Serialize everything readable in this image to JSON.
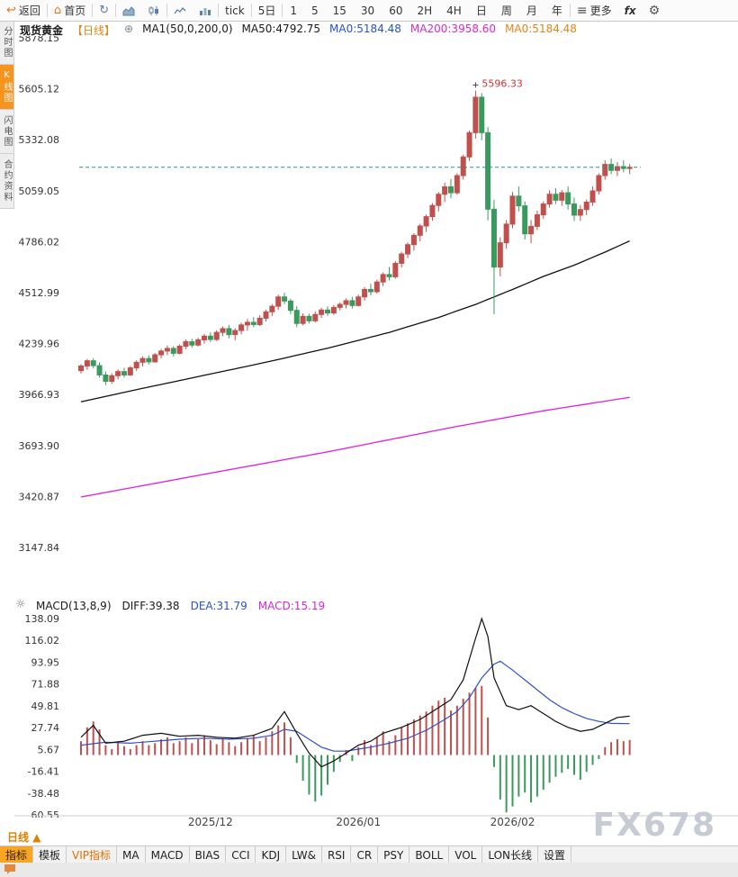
{
  "toolbar": {
    "back_label": "返回",
    "home_label": "首页",
    "tick_label": "tick",
    "five_day_label": "5日",
    "timeframes": [
      "1",
      "5",
      "15",
      "30",
      "60",
      "2H",
      "4H",
      "日",
      "周",
      "月",
      "年"
    ],
    "more_label": "更多",
    "fx_label": "fx"
  },
  "icons": {
    "back_glyph": "↩",
    "home_glyph": "⌂",
    "refresh_glyph": "↻",
    "more_glyph": "≡",
    "gear_glyph": "⚙",
    "expand_glyph": "⊕",
    "indicator_glyph": "☼",
    "period_arrow": "▲"
  },
  "side_tabs": [
    {
      "label": "分时图",
      "selected": false
    },
    {
      "label": "K线图",
      "selected": true
    },
    {
      "label": "闪电图",
      "selected": false
    },
    {
      "label": "合约资料",
      "selected": false
    }
  ],
  "chart_header": {
    "symbol": "现货黄金",
    "period_tag": "【日线】",
    "ma_setting": "MA1(50,0,200,0)",
    "ma50_label": "MA50:4792.75",
    "ma0_blue_label": "MA0:5184.48",
    "ma200_label": "MA200:3958.60",
    "ma0_orange_label": "MA0:5184.48"
  },
  "macd_header": {
    "title": "MACD(13,8,9)",
    "diff_label": "DIFF:39.38",
    "dea_label": "DEA:31.79",
    "macd_label": "MACD:15.19"
  },
  "bottom": {
    "period_selector": "日线",
    "watermark": "FX678",
    "tabs": [
      {
        "label": "指标",
        "state": "selected"
      },
      {
        "label": "模板"
      },
      {
        "label": "VIP指标",
        "accent": true
      },
      {
        "label": "MA"
      },
      {
        "label": "MACD"
      },
      {
        "label": "BIAS"
      },
      {
        "label": "CCI"
      },
      {
        "label": "KDJ"
      },
      {
        "label": "LW&"
      },
      {
        "label": "RSI"
      },
      {
        "label": "CR"
      },
      {
        "label": "PSY"
      },
      {
        "label": "BOLL"
      },
      {
        "label": "VOL"
      },
      {
        "label": "LON长线"
      },
      {
        "label": "设置"
      }
    ]
  },
  "chart_data": {
    "type": "candlestick",
    "title": "现货黄金 日线",
    "price_axis": {
      "ticks": [
        5878.15,
        5605.12,
        5332.08,
        5059.05,
        4786.02,
        4512.99,
        4239.96,
        3966.93,
        3693.9,
        3420.87,
        3147.84
      ]
    },
    "macd_axis": {
      "ticks": [
        138.09,
        116.02,
        93.95,
        71.88,
        49.81,
        27.74,
        5.67,
        -16.41,
        -38.48,
        -60.55
      ]
    },
    "x_axis": {
      "labels": [
        {
          "text": "2025/12",
          "index": 21
        },
        {
          "text": "2026/01",
          "index": 45
        },
        {
          "text": "2026/02",
          "index": 70
        }
      ]
    },
    "current_price": 5184.48,
    "peak_annotation": {
      "value": 5596.33,
      "index": 64
    },
    "candles": [
      [
        4095,
        4130,
        4080,
        4120
      ],
      [
        4120,
        4158,
        4100,
        4148
      ],
      [
        4148,
        4162,
        4108,
        4122
      ],
      [
        4122,
        4140,
        4058,
        4072
      ],
      [
        4072,
        4090,
        4018,
        4038
      ],
      [
        4038,
        4080,
        4024,
        4068
      ],
      [
        4068,
        4102,
        4048,
        4090
      ],
      [
        4090,
        4110,
        4058,
        4072
      ],
      [
        4072,
        4120,
        4066,
        4110
      ],
      [
        4110,
        4150,
        4094,
        4140
      ],
      [
        4140,
        4172,
        4118,
        4160
      ],
      [
        4160,
        4176,
        4128,
        4142
      ],
      [
        4142,
        4190,
        4138,
        4180
      ],
      [
        4180,
        4212,
        4160,
        4200
      ],
      [
        4200,
        4230,
        4178,
        4214
      ],
      [
        4214,
        4226,
        4172,
        4188
      ],
      [
        4188,
        4236,
        4182,
        4226
      ],
      [
        4226,
        4262,
        4210,
        4250
      ],
      [
        4250,
        4266,
        4218,
        4232
      ],
      [
        4232,
        4272,
        4224,
        4260
      ],
      [
        4260,
        4292,
        4240,
        4280
      ],
      [
        4280,
        4300,
        4248,
        4262
      ],
      [
        4262,
        4312,
        4254,
        4300
      ],
      [
        4300,
        4332,
        4280,
        4320
      ],
      [
        4320,
        4340,
        4268,
        4288
      ],
      [
        4288,
        4322,
        4258,
        4310
      ],
      [
        4310,
        4352,
        4290,
        4340
      ],
      [
        4340,
        4372,
        4310,
        4354
      ],
      [
        4354,
        4382,
        4328,
        4342
      ],
      [
        4342,
        4392,
        4334,
        4376
      ],
      [
        4376,
        4422,
        4358,
        4410
      ],
      [
        4410,
        4452,
        4388,
        4440
      ],
      [
        4440,
        4502,
        4420,
        4490
      ],
      [
        4490,
        4512,
        4452,
        4468
      ],
      [
        4468,
        4480,
        4398,
        4418
      ],
      [
        4418,
        4440,
        4328,
        4348
      ],
      [
        4348,
        4402,
        4338,
        4386
      ],
      [
        4386,
        4400,
        4348,
        4362
      ],
      [
        4362,
        4412,
        4354,
        4396
      ],
      [
        4396,
        4432,
        4378,
        4420
      ],
      [
        4420,
        4440,
        4388,
        4404
      ],
      [
        4404,
        4446,
        4394,
        4434
      ],
      [
        4434,
        4462,
        4418,
        4450
      ],
      [
        4450,
        4482,
        4428,
        4470
      ],
      [
        4470,
        4490,
        4428,
        4444
      ],
      [
        4444,
        4502,
        4438,
        4490
      ],
      [
        4490,
        4542,
        4470,
        4530
      ],
      [
        4530,
        4560,
        4498,
        4518
      ],
      [
        4518,
        4582,
        4508,
        4570
      ],
      [
        4570,
        4622,
        4548,
        4610
      ],
      [
        4610,
        4650,
        4578,
        4598
      ],
      [
        4598,
        4682,
        4588,
        4670
      ],
      [
        4670,
        4732,
        4648,
        4720
      ],
      [
        4720,
        4782,
        4698,
        4770
      ],
      [
        4770,
        4832,
        4738,
        4820
      ],
      [
        4820,
        4882,
        4788,
        4870
      ],
      [
        4870,
        4932,
        4838,
        4920
      ],
      [
        4920,
        4992,
        4898,
        4980
      ],
      [
        4980,
        5052,
        4948,
        5040
      ],
      [
        5040,
        5102,
        4998,
        5080
      ],
      [
        5080,
        5122,
        5018,
        5048
      ],
      [
        5048,
        5152,
        5038,
        5140
      ],
      [
        5140,
        5252,
        5118,
        5240
      ],
      [
        5240,
        5382,
        5218,
        5370
      ],
      [
        5370,
        5596,
        5338,
        5560
      ],
      [
        5560,
        5582,
        5330,
        5370
      ],
      [
        5370,
        5400,
        4900,
        4960
      ],
      [
        4960,
        5010,
        4398,
        4650
      ],
      [
        4650,
        4810,
        4600,
        4780
      ],
      [
        4780,
        4902,
        4748,
        4880
      ],
      [
        4880,
        5052,
        4858,
        5030
      ],
      [
        5030,
        5082,
        4948,
        4978
      ],
      [
        4978,
        5002,
        4798,
        4828
      ],
      [
        4828,
        4902,
        4778,
        4868
      ],
      [
        4868,
        4952,
        4848,
        4930
      ],
      [
        4930,
        5002,
        4908,
        4988
      ],
      [
        4988,
        5062,
        4968,
        5040
      ],
      [
        5040,
        5072,
        4988,
        5008
      ],
      [
        5008,
        5062,
        4978,
        5048
      ],
      [
        5048,
        5082,
        4958,
        4988
      ],
      [
        4988,
        5022,
        4898,
        4928
      ],
      [
        4928,
        4982,
        4898,
        4958
      ],
      [
        4958,
        5012,
        4928,
        4998
      ],
      [
        4998,
        5082,
        4978,
        5058
      ],
      [
        5058,
        5152,
        5038,
        5140
      ],
      [
        5140,
        5222,
        5118,
        5200
      ],
      [
        5200,
        5232,
        5148,
        5168
      ],
      [
        5168,
        5212,
        5138,
        5188
      ],
      [
        5188,
        5222,
        5158,
        5178
      ],
      [
        5178,
        5202,
        5148,
        5184
      ]
    ],
    "ma50": [
      [
        0,
        3928
      ],
      [
        10,
        4000
      ],
      [
        20,
        4070
      ],
      [
        30,
        4140
      ],
      [
        40,
        4215
      ],
      [
        50,
        4300
      ],
      [
        58,
        4380
      ],
      [
        64,
        4450
      ],
      [
        70,
        4530
      ],
      [
        75,
        4600
      ],
      [
        80,
        4660
      ],
      [
        85,
        4730
      ],
      [
        89,
        4790
      ]
    ],
    "ma200": [
      [
        0,
        3418
      ],
      [
        20,
        3540
      ],
      [
        40,
        3660
      ],
      [
        60,
        3790
      ],
      [
        75,
        3880
      ],
      [
        89,
        3952
      ]
    ],
    "macd": {
      "histogram": [
        14,
        28,
        34,
        26,
        10,
        6,
        12,
        9,
        6,
        10,
        14,
        10,
        12,
        16,
        18,
        12,
        14,
        18,
        12,
        16,
        20,
        15,
        11,
        17,
        13,
        9,
        13,
        17,
        20,
        14,
        18,
        24,
        30,
        33,
        18,
        -8,
        -26,
        -40,
        -47,
        -41,
        -30,
        -17,
        -7,
        5,
        -6,
        8,
        15,
        10,
        18,
        24,
        14,
        20,
        28,
        32,
        36,
        40,
        44,
        50,
        55,
        58,
        45,
        50,
        57,
        63,
        68,
        70,
        38,
        -12,
        -45,
        -58,
        -52,
        -42,
        -38,
        -48,
        -42,
        -35,
        -28,
        -22,
        -18,
        -14,
        -20,
        -25,
        -17,
        -10,
        -4,
        8,
        13,
        16,
        14,
        15.19
      ],
      "diff": [
        [
          0,
          18
        ],
        [
          2,
          30
        ],
        [
          4,
          12
        ],
        [
          7,
          14
        ],
        [
          10,
          20
        ],
        [
          13,
          22
        ],
        [
          16,
          19
        ],
        [
          19,
          20
        ],
        [
          22,
          18
        ],
        [
          25,
          17
        ],
        [
          28,
          20
        ],
        [
          31,
          27
        ],
        [
          33,
          44
        ],
        [
          35,
          22
        ],
        [
          37,
          2
        ],
        [
          39,
          -12
        ],
        [
          41,
          -6
        ],
        [
          43,
          2
        ],
        [
          45,
          10
        ],
        [
          47,
          14
        ],
        [
          49,
          22
        ],
        [
          52,
          28
        ],
        [
          55,
          36
        ],
        [
          58,
          48
        ],
        [
          60,
          56
        ],
        [
          62,
          76
        ],
        [
          64,
          118
        ],
        [
          65,
          138
        ],
        [
          66,
          120
        ],
        [
          67,
          78
        ],
        [
          69,
          50
        ],
        [
          71,
          46
        ],
        [
          73,
          50
        ],
        [
          75,
          42
        ],
        [
          77,
          34
        ],
        [
          79,
          28
        ],
        [
          81,
          24
        ],
        [
          83,
          26
        ],
        [
          85,
          32
        ],
        [
          87,
          38
        ],
        [
          89,
          39.38
        ]
      ],
      "dea": [
        [
          0,
          10
        ],
        [
          4,
          13
        ],
        [
          8,
          12
        ],
        [
          12,
          14
        ],
        [
          16,
          16
        ],
        [
          20,
          17
        ],
        [
          24,
          16
        ],
        [
          28,
          17
        ],
        [
          31,
          20
        ],
        [
          33,
          26
        ],
        [
          35,
          24
        ],
        [
          37,
          16
        ],
        [
          39,
          8
        ],
        [
          41,
          4
        ],
        [
          43,
          4
        ],
        [
          45,
          6
        ],
        [
          47,
          8
        ],
        [
          50,
          12
        ],
        [
          53,
          17
        ],
        [
          56,
          25
        ],
        [
          59,
          36
        ],
        [
          61,
          44
        ],
        [
          63,
          58
        ],
        [
          65,
          78
        ],
        [
          67,
          92
        ],
        [
          68,
          95
        ],
        [
          70,
          86
        ],
        [
          72,
          76
        ],
        [
          74,
          66
        ],
        [
          76,
          56
        ],
        [
          78,
          48
        ],
        [
          80,
          42
        ],
        [
          82,
          37
        ],
        [
          84,
          34
        ],
        [
          86,
          32
        ],
        [
          89,
          31.79
        ]
      ]
    },
    "colors": {
      "up": "#c0504d",
      "down": "#3a9a5e",
      "ma50": "#111111",
      "ma200": "#e020e0",
      "diff": "#111111",
      "dea": "#3050c8",
      "current_price_line": "#2e8f8f",
      "peak_text": "#d43030",
      "axis_text": "#333333"
    }
  }
}
